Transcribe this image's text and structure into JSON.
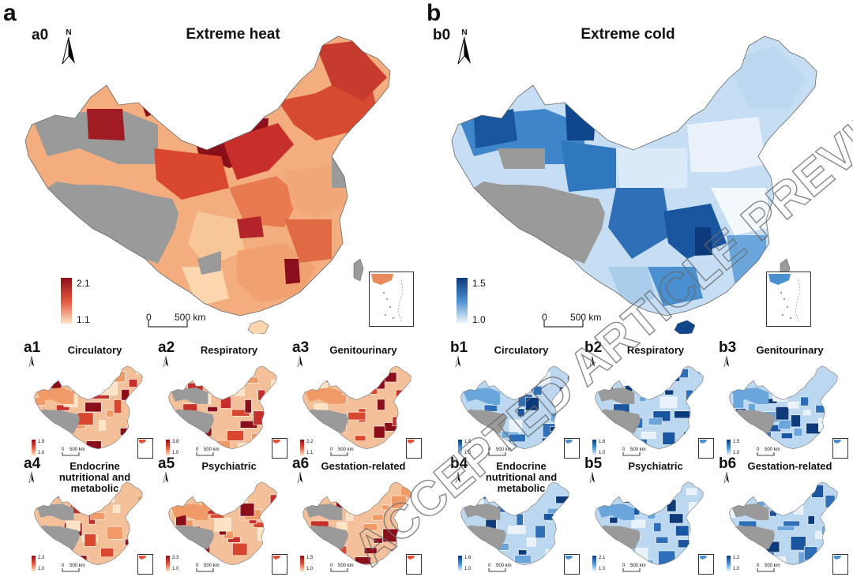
{
  "panels": {
    "heat": {
      "letter": "a",
      "sub": "a0",
      "title": "Extreme heat",
      "legend_max": "2.1",
      "legend_min": "1.1",
      "scale_zero": "0",
      "scale_dist": "500 km",
      "north": "N"
    },
    "cold": {
      "letter": "b",
      "sub": "b0",
      "title": "Extreme cold",
      "legend_max": "1.5",
      "legend_min": "1.0",
      "scale_zero": "0",
      "scale_dist": "500 km",
      "north": "N"
    }
  },
  "small_maps": [
    {
      "sub": "a1",
      "title": "Circulatory",
      "lmax": "1.9",
      "lmin": "1.0",
      "theme": "heat"
    },
    {
      "sub": "a2",
      "title": "Respiratory",
      "lmax": "3.8",
      "lmin": "1.0",
      "theme": "heat"
    },
    {
      "sub": "a3",
      "title": "Genitourinary",
      "lmax": "2.2",
      "lmin": "1.1",
      "theme": "heat"
    },
    {
      "sub": "a4",
      "title": "Endocrine nutritional and metabolic",
      "lmax": "2.3",
      "lmin": "1.0",
      "theme": "heat"
    },
    {
      "sub": "a5",
      "title": "Psychiatric",
      "lmax": "3.3",
      "lmin": "1.0",
      "theme": "heat"
    },
    {
      "sub": "a6",
      "title": "Gestation-related",
      "lmax": "1.5",
      "lmin": "1.0",
      "theme": "heat"
    },
    {
      "sub": "b1",
      "title": "Circulatory",
      "lmax": "1.5",
      "lmin": "1.0",
      "theme": "cold"
    },
    {
      "sub": "b2",
      "title": "Respiratory",
      "lmax": "1.6",
      "lmin": "1.0",
      "theme": "cold"
    },
    {
      "sub": "b3",
      "title": "Genitourinary",
      "lmax": "1.5",
      "lmin": "1.0",
      "theme": "cold"
    },
    {
      "sub": "b4",
      "title": "Endocrine nutritional and metabolic",
      "lmax": "1.6",
      "lmin": "1.0",
      "theme": "cold"
    },
    {
      "sub": "b5",
      "title": "Psychiatric",
      "lmax": "2.1",
      "lmin": "1.0",
      "theme": "cold"
    },
    {
      "sub": "b6",
      "title": "Gestation-related",
      "lmax": "1.2",
      "lmin": "1.0",
      "theme": "cold"
    }
  ],
  "small_scale": {
    "zero": "0",
    "dist": "500 km"
  },
  "watermark": "ACCEPTED ARTICLE PREVIEW",
  "colors": {
    "heat_dark": "#8b0f1a",
    "heat_mid": "#e2553b",
    "heat_light": "#fde3c4",
    "cold_dark": "#0d3a7a",
    "cold_mid": "#4a8fcf",
    "cold_light": "#e9f2fb",
    "no_data": "#9a9a9a"
  }
}
